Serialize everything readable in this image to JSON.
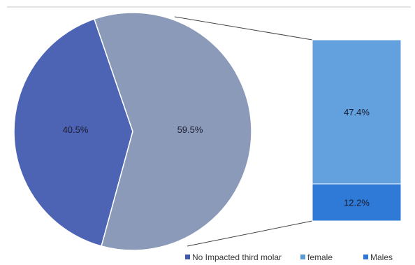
{
  "chart_data": {
    "type": "pie",
    "title": "",
    "pie": {
      "slices": [
        {
          "label": "No Impacted third molar",
          "value": 40.5,
          "display": "40.5%"
        },
        {
          "value": 59.5,
          "display": "59.5%"
        }
      ]
    },
    "breakdown_bar": {
      "segments": [
        {
          "label": "female",
          "value": 47.4,
          "display": "47.4%"
        },
        {
          "label": "Males",
          "value": 12.2,
          "display": "12.2%"
        }
      ]
    },
    "legend": {
      "position": "bottom-right",
      "entries": [
        {
          "label": "No Impacted third molar",
          "color": "#3e5aa9"
        },
        {
          "label": "female",
          "color": "#5b9bd5"
        },
        {
          "label": "Males",
          "color": "#2e75d6"
        }
      ]
    }
  },
  "colors": {
    "pie_blue": "#4d63b4",
    "pie_gray": "#8b9ab8",
    "bar_female": "#62a1dd",
    "bar_males": "#2f7ad6",
    "connector": "#444444",
    "top_line": "#c8c8c8"
  }
}
